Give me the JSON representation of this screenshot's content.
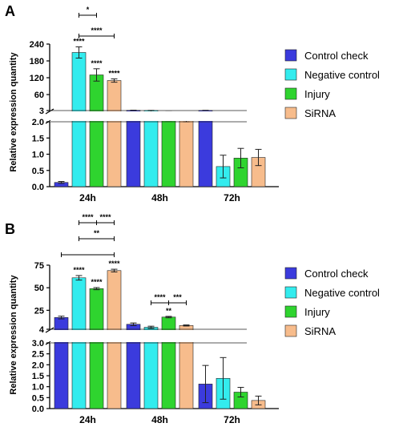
{
  "colors": {
    "Control check": "#3b3bdd",
    "Negative control": "#33ecee",
    "Injury": "#2fd42f",
    "SiRNA": "#f7bc8c"
  },
  "chart_data": [
    {
      "panel": "A",
      "type": "bar",
      "ylabel": "Relative expression quantity",
      "categories": [
        "24h",
        "48h",
        "72h"
      ],
      "y_axis_broken": true,
      "lower_ylim": [
        0,
        2.0
      ],
      "upper_ylim": [
        3,
        240
      ],
      "lower_ticks": [
        "0.0",
        "0.5",
        "1.0",
        "1.5",
        "2.0"
      ],
      "upper_ticks": [
        "3",
        "60",
        "120",
        "180",
        "240"
      ],
      "series": [
        {
          "name": "Control check",
          "values": [
            0.13,
            3.8,
            3.5
          ],
          "errors": [
            0.03,
            0.6,
            0.5
          ]
        },
        {
          "name": "Negative control",
          "values": [
            210,
            3.3,
            0.62
          ],
          "errors": [
            20,
            0.4,
            0.35
          ]
        },
        {
          "name": "Injury",
          "values": [
            130,
            2.5,
            0.88
          ],
          "errors": [
            22,
            0.4,
            0.3
          ]
        },
        {
          "name": "SiRNA",
          "values": [
            110,
            2.3,
            0.9
          ],
          "errors": [
            6,
            0.3,
            0.25
          ]
        }
      ],
      "bar_annotations": [
        {
          "series": "Negative control",
          "category": "24h",
          "text": "****"
        },
        {
          "series": "Injury",
          "category": "24h",
          "text": "****"
        },
        {
          "series": "SiRNA",
          "category": "24h",
          "text": "****"
        }
      ],
      "brackets": [
        {
          "category": "24h",
          "from": "Negative control",
          "to": "Injury",
          "level": 1,
          "labels": [
            "*"
          ]
        },
        {
          "category": "24h",
          "from": "Negative control",
          "to": "SiRNA",
          "level": 0,
          "labels": [
            "****"
          ]
        }
      ],
      "legend": [
        "Control check",
        "Negative control",
        "Injury",
        "SiRNA"
      ],
      "legend_position": "right"
    },
    {
      "panel": "B",
      "type": "bar",
      "ylabel": "Relative expression quantity",
      "categories": [
        "24h",
        "48h",
        "72h"
      ],
      "y_axis_broken": true,
      "lower_ylim": [
        0,
        3.0
      ],
      "upper_ylim": [
        4,
        75
      ],
      "lower_ticks": [
        "0.0",
        "0.5",
        "1.0",
        "1.5",
        "2.0",
        "2.5",
        "3.0"
      ],
      "upper_ticks": [
        "4",
        "25",
        "50",
        "75"
      ],
      "series": [
        {
          "name": "Control check",
          "values": [
            17,
            9.5,
            1.12
          ],
          "errors": [
            1.5,
            1.5,
            0.85
          ]
        },
        {
          "name": "Negative control",
          "values": [
            61,
            6.2,
            1.38
          ],
          "errors": [
            2.5,
            1.2,
            0.95
          ]
        },
        {
          "name": "Injury",
          "values": [
            49,
            17.5,
            0.75
          ],
          "errors": [
            1.2,
            0.8,
            0.22
          ]
        },
        {
          "name": "SiRNA",
          "values": [
            69,
            8.2,
            0.37
          ],
          "errors": [
            1.5,
            0.6,
            0.2
          ]
        }
      ],
      "bar_annotations": [
        {
          "series": "Negative control",
          "category": "24h",
          "text": "****"
        },
        {
          "series": "Injury",
          "category": "24h",
          "text": "****"
        },
        {
          "series": "SiRNA",
          "category": "24h",
          "text": "****"
        },
        {
          "series": "Injury",
          "category": "48h",
          "text": "**"
        }
      ],
      "brackets": [
        {
          "category": "24h",
          "from": "Negative control",
          "to": "SiRNA",
          "level": 2,
          "labels": [
            "****",
            "****"
          ]
        },
        {
          "category": "24h",
          "from": "Negative control",
          "to": "SiRNA",
          "level": 1,
          "labels": [
            "**"
          ]
        },
        {
          "category": "24h",
          "from": "Control check",
          "to": "SiRNA",
          "level": 0,
          "labels": [
            ""
          ]
        },
        {
          "category": "48h",
          "from": "Negative control",
          "to": "SiRNA",
          "level": 0,
          "labels": [
            "****",
            "***"
          ]
        }
      ],
      "legend": [
        "Control check",
        "Negative control",
        "Injury",
        "SiRNA"
      ],
      "legend_position": "right"
    }
  ]
}
